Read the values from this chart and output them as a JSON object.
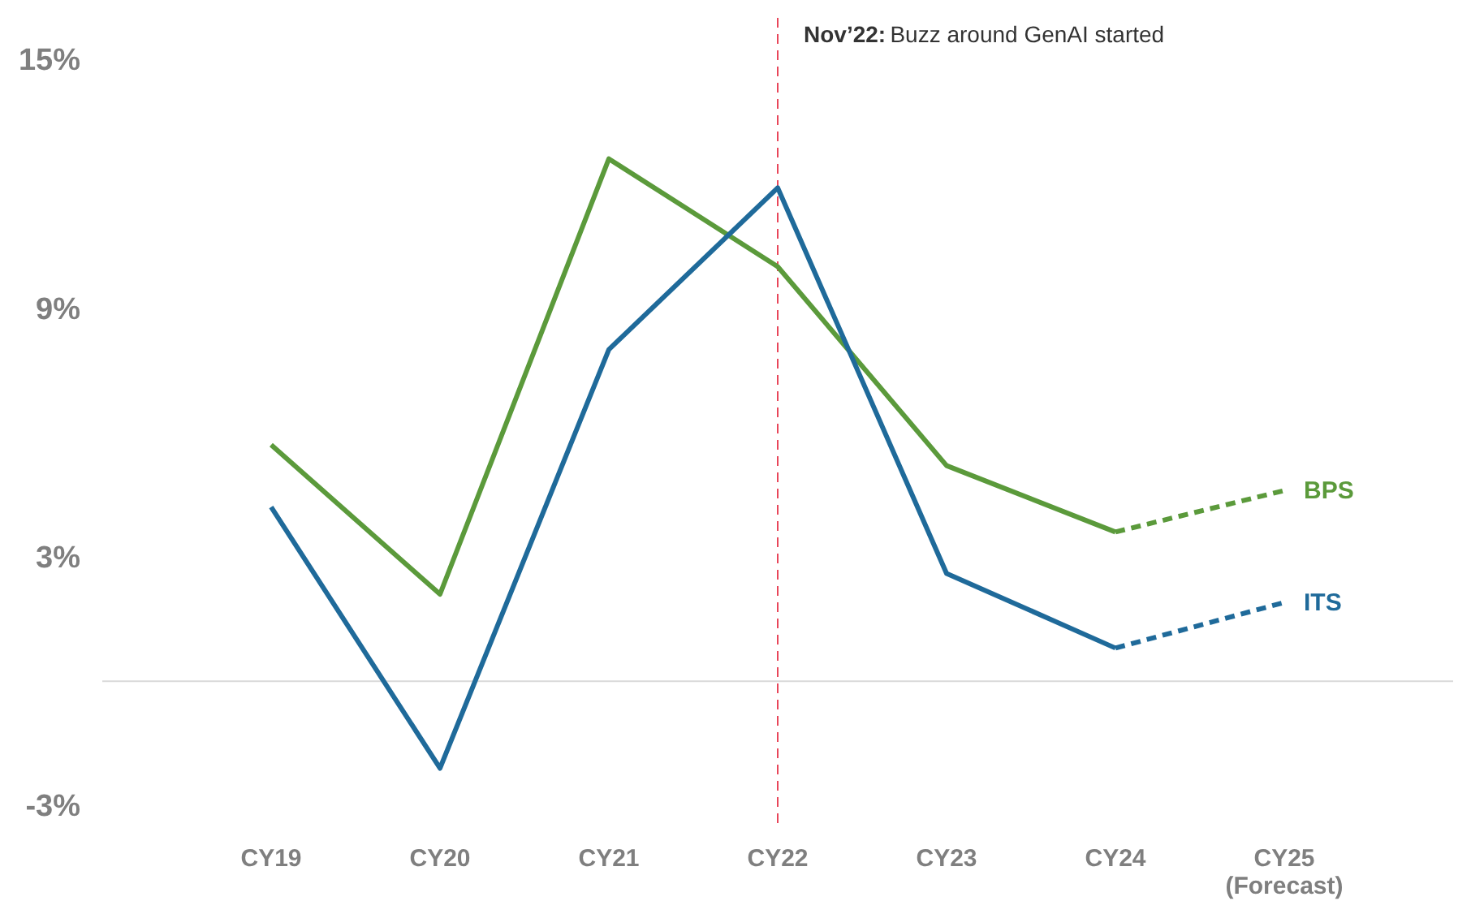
{
  "chart_data": {
    "type": "line",
    "categories": [
      "CY19",
      "CY20",
      "CY21",
      "CY22",
      "CY23",
      "CY24",
      "CY25\n(Forecast)"
    ],
    "series": [
      {
        "color": "#5b9a3b",
        "values": [
          5.7,
          2.1,
          12.6,
          10.0,
          5.2,
          3.6,
          null
        ],
        "line_style": "solid"
      },
      {
        "color": "#1f6a9a",
        "values": [
          4.2,
          -2.1,
          8.0,
          11.9,
          2.6,
          0.8,
          null
        ],
        "line_style": "solid"
      },
      {
        "name": "BPS",
        "color": "#5b9a3b",
        "values": [
          null,
          null,
          null,
          null,
          null,
          3.6,
          4.6
        ],
        "line_style": "dashed"
      },
      {
        "name": "ITS",
        "color": "#1f6a9a",
        "values": [
          null,
          null,
          null,
          null,
          null,
          0.8,
          1.9
        ],
        "line_style": "dashed"
      }
    ],
    "ylim": [
      -3.5,
      16
    ],
    "yticks": [
      {
        "value": 15,
        "label": "15%"
      },
      {
        "value": 9,
        "label": "9%"
      },
      {
        "value": 3,
        "label": "3%"
      },
      {
        "value": -3,
        "label": "-3%"
      }
    ],
    "ref_lines": [
      {
        "axis": "x",
        "value": "CY22",
        "label": "Nov’22: Buzz around GenAI started",
        "color": "#e8465a",
        "line_style": "dashed"
      },
      {
        "axis": "y",
        "value": 0,
        "color": "#d9d9d9",
        "line_style": "solid"
      }
    ],
    "grid": false,
    "marker": "none"
  }
}
